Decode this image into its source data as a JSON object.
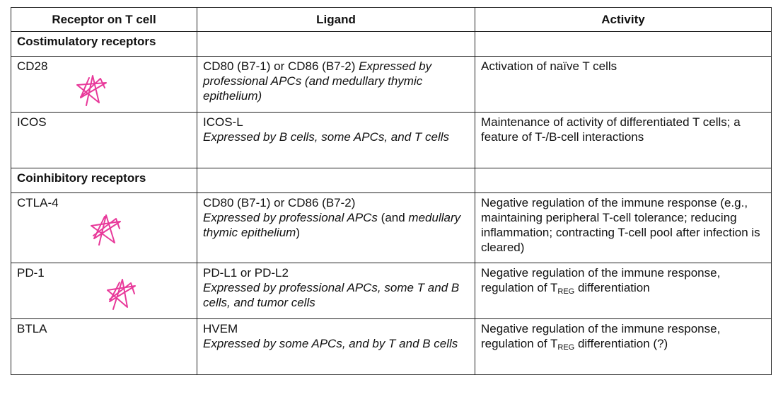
{
  "headers": {
    "receptor": "Receptor on T cell",
    "ligand": "Ligand",
    "activity": "Activity"
  },
  "sections": {
    "costimulatory": "Costimulatory receptors",
    "coinhibitory": "Coinhibitory receptors"
  },
  "rows": [
    {
      "receptor": "CD28",
      "ligand_name": "CD80 (B7-1) or CD86 (B7-2) ",
      "ligand_expr": "Expressed by professional APCs (and medullary thymic epithelium)",
      "activity": "Activation of naïve T cells"
    },
    {
      "receptor": "ICOS",
      "ligand_name": "ICOS-L",
      "ligand_expr": "Expressed by B cells, some APCs, and T cells",
      "activity": "Maintenance of activity of differentiated T cells; a feature of T-/B-cell interactions"
    },
    {
      "receptor": "CTLA-4",
      "ligand_name": "CD80 (B7-1) or CD86 (B7-2)",
      "ligand_expr_a": "Expressed by professional APCs",
      "ligand_plain_b": " (and ",
      "ligand_expr_c": "medullary thymic epithelium",
      "ligand_plain_d": ")",
      "activity": "Negative regulation of the immune response (e.g., maintaining peripheral T-cell tolerance; reducing inflammation; contracting T-cell pool after infection is cleared)"
    },
    {
      "receptor": "PD-1",
      "ligand_name": "PD-L1 or PD-L2",
      "ligand_expr": "Expressed by professional APCs, some T and B cells, and tumor cells",
      "activity_a": "Negative regulation of the immune response, regulation of T",
      "activity_sub": "REG",
      "activity_b": " differentiation"
    },
    {
      "receptor": "BTLA",
      "ligand_name": "HVEM",
      "ligand_expr": "Expressed by some APCs, and by T and B cells",
      "activity_a": "Negative regulation of the immune response, regulation of T",
      "activity_sub": "REG",
      "activity_b": " differentiation (?)"
    }
  ],
  "annotation_color": "#e8399a",
  "annotation_icon": "hand-drawn-star-icon"
}
